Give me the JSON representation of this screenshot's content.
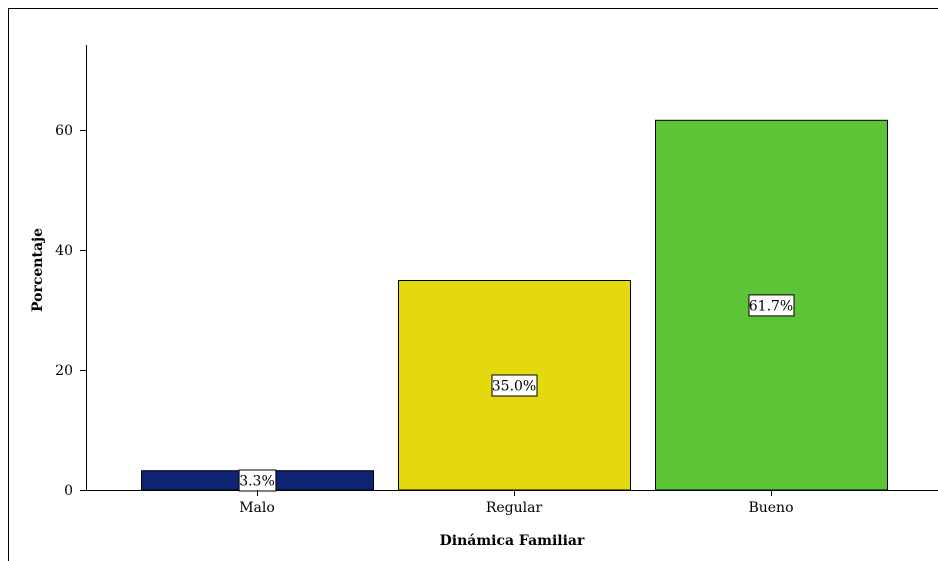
{
  "chart_data": {
    "type": "bar",
    "title": "",
    "xlabel": "Dinámica Familiar",
    "ylabel": "Porcentaje",
    "categories": [
      "Malo",
      "Regular",
      "Bueno"
    ],
    "values": [
      3.3,
      35.0,
      61.7
    ],
    "data_labels": [
      "3.3%",
      "35.0%",
      "61.7%"
    ],
    "colors": [
      "#0c2471",
      "#e3d90e",
      "#5ec437"
    ],
    "ylim": [
      0,
      74
    ],
    "yticks": [
      0,
      20,
      40,
      60
    ],
    "ytick_labels": [
      "0",
      "20",
      "40",
      "60"
    ],
    "grid": false,
    "legend": "none"
  }
}
